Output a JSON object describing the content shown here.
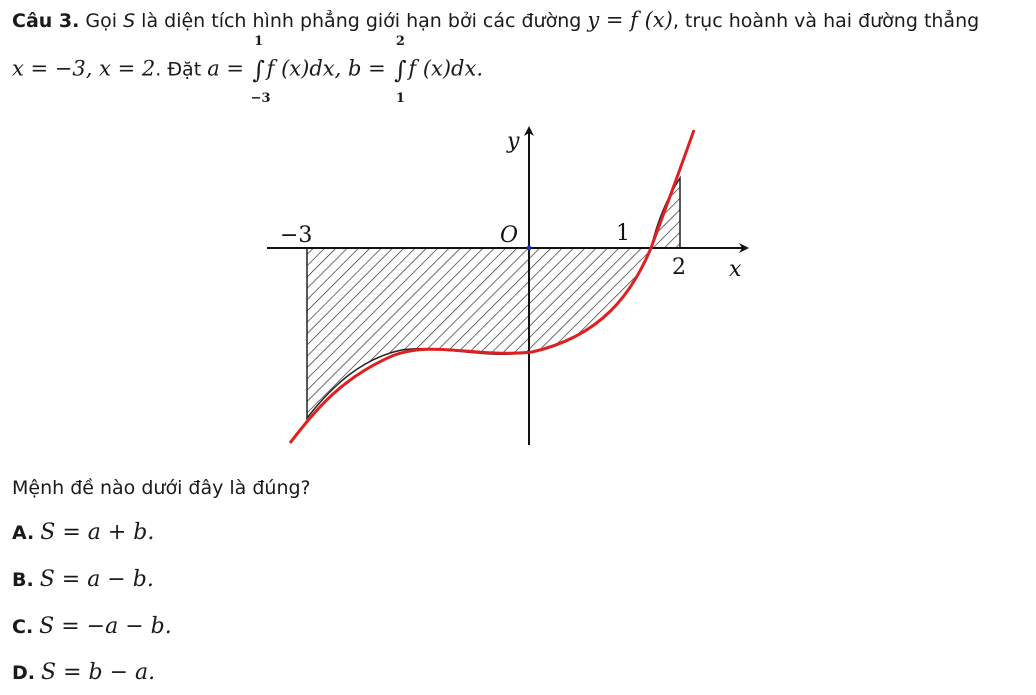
{
  "problem": {
    "number_label": "Câu 3.",
    "text_1": "Gọi ",
    "var_S": "S",
    "text_2": " là diện tích hình phẳng giới hạn bởi các đường ",
    "eq_y": "y = f (x)",
    "text_3": ", trục hoành và hai đường thẳng",
    "eq_lines": "x = −3, x = 2",
    "text_4": ". Đặt ",
    "a_lhs": "a = ",
    "a_int_upper": "1",
    "a_int_lower": "−3",
    "a_integrand": "f (x)dx, ",
    "b_lhs": "b = ",
    "b_int_upper": "2",
    "b_int_lower": "1",
    "b_integrand": "f (x)dx.",
    "integral_symbol": "∫"
  },
  "figure": {
    "axis_y_label": "y",
    "axis_x_label": "x",
    "origin_label": "O",
    "label_minus3": "−3",
    "label_1": "1",
    "label_2": "2",
    "curve_color": "#e02020",
    "axis_color": "#111111",
    "hatch_color": "#222222"
  },
  "question": "Mệnh đề nào dưới đây là đúng?",
  "options": [
    {
      "label": "A.",
      "expr": "S = a + b."
    },
    {
      "label": "B.",
      "expr": "S = a − b."
    },
    {
      "label": "C.",
      "expr": "S = −a − b."
    },
    {
      "label": "D.",
      "expr": "S = b − a."
    }
  ]
}
